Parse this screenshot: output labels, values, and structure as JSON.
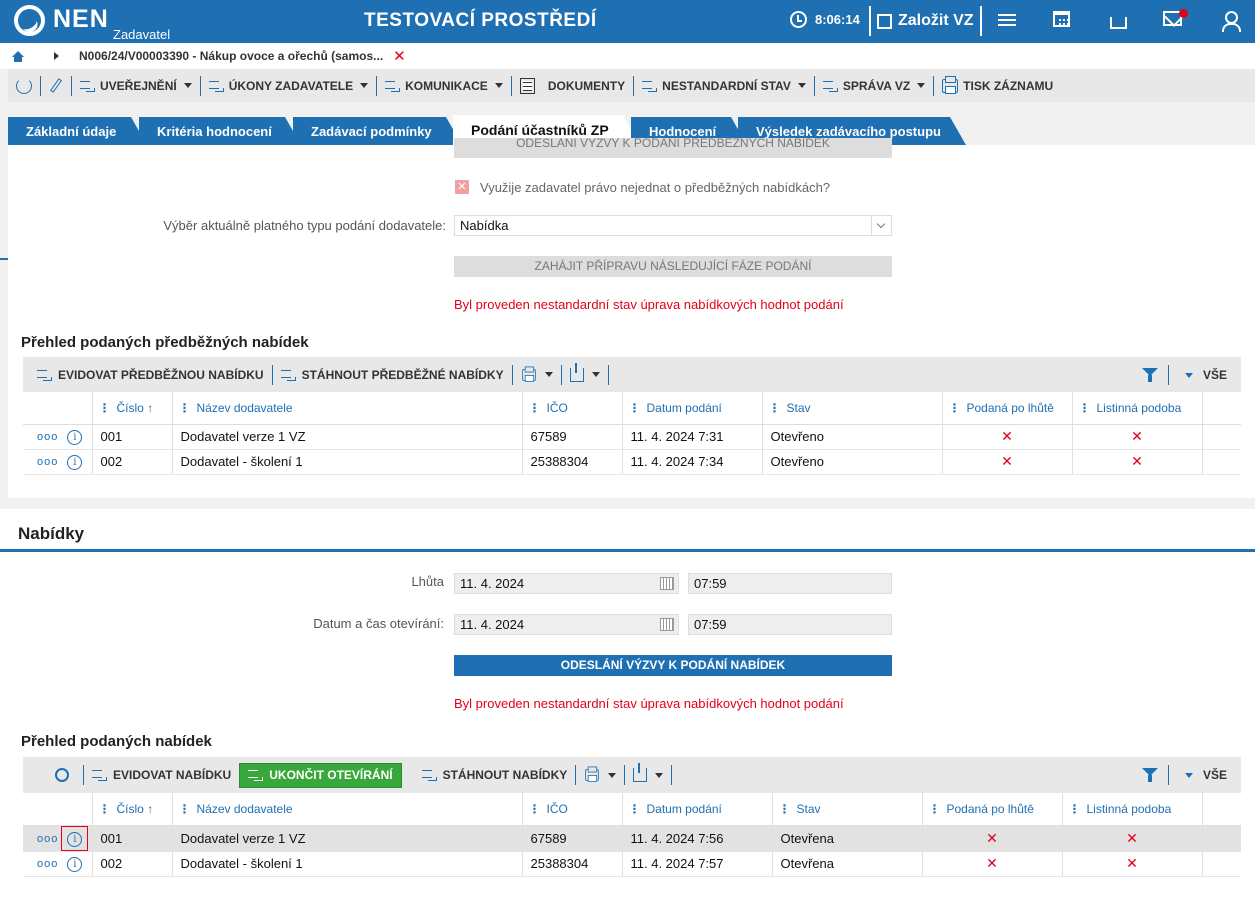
{
  "header": {
    "logo_text": "NEN",
    "logo_sub": "Zadavatel",
    "env_title": "TESTOVACÍ PROSTŘEDÍ",
    "time": "8:06:14",
    "create_vz": "Založit VZ"
  },
  "breadcrumb": {
    "text": "N006/24/V00003390 - Nákup ovoce a ořechů (samos...",
    "close": "✕"
  },
  "toolbar": {
    "items": [
      "UVEŘEJNĚNÍ",
      "ÚKONY ZADAVATELE",
      "KOMUNIKACE",
      "DOKUMENTY",
      "NESTANDARDNÍ STAV",
      "SPRÁVA VZ",
      "TISK ZÁZNAMU"
    ]
  },
  "tabs": [
    "Základní údaje",
    "Kritéria hodnocení",
    "Zadávací podmínky",
    "Podání účastníků ZP",
    "Hodnocení",
    "Výsledek zadávacího postupu"
  ],
  "predbezne": {
    "cut_button": "ODESLÁNÍ VÝZVY K PODÁNÍ PŘEDBĚŽNÝCH NABÍDEK",
    "checkbox_label": "Využije zadavatel právo nejednat o předběžných nabídkách?",
    "type_label": "Výběr aktuálně platného typu podání dodavatele:",
    "type_value": "Nabídka",
    "next_phase_button": "ZAHÁJIT PŘÍPRAVU NÁSLEDUJÍCÍ FÁZE PODÁNÍ",
    "warning": "Byl proveden nestandardní stav úprava nabídkových hodnot podání",
    "overview_title": "Přehled podaných předběžných nabídek",
    "toolbar": {
      "evidovat": "EVIDOVAT PŘEDBĚŽNOU NABÍDKU",
      "stahnout": "STÁHNOUT PŘEDBĚŽNÉ NABÍDKY",
      "all": "VŠE"
    },
    "columns": [
      "Číslo",
      "Název dodavatele",
      "IČO",
      "Datum podání",
      "Stav",
      "Podaná po lhůtě",
      "Listinná podoba"
    ],
    "rows": [
      {
        "cislo": "001",
        "nazev": "Dodavatel verze 1 VZ",
        "ico": "67589",
        "datum": "11. 4. 2024 7:31",
        "stav": "Otevřeno",
        "po_lhute": "✕",
        "listinna": "✕"
      },
      {
        "cislo": "002",
        "nazev": "Dodavatel - školení 1",
        "ico": "25388304",
        "datum": "11. 4. 2024 7:34",
        "stav": "Otevřeno",
        "po_lhute": "✕",
        "listinna": "✕"
      }
    ]
  },
  "nabidky": {
    "title": "Nabídky",
    "lhuta_label": "Lhůta",
    "lhuta_date": "11. 4. 2024",
    "lhuta_time": "07:59",
    "otevirani_label": "Datum a čas otevírání:",
    "otevirani_date": "11. 4. 2024",
    "otevirani_time": "07:59",
    "send_button": "ODESLÁNÍ VÝZVY K PODÁNÍ NABÍDEK",
    "warning": "Byl proveden nestandardní stav úprava nabídkových hodnot podání",
    "overview_title": "Přehled podaných nabídek",
    "toolbar": {
      "evidovat": "EVIDOVAT NABÍDKU",
      "ukoncit": "UKONČIT OTEVÍRÁNÍ",
      "stahnout": "STÁHNOUT NABÍDKY",
      "all": "VŠE"
    },
    "columns": [
      "Číslo",
      "Název dodavatele",
      "IČO",
      "Datum podání",
      "Stav",
      "Podaná po lhůtě",
      "Listinná podoba"
    ],
    "rows": [
      {
        "cislo": "001",
        "nazev": "Dodavatel verze 1 VZ",
        "ico": "67589",
        "datum": "11. 4. 2024 7:56",
        "stav": "Otevřena",
        "po_lhute": "✕",
        "listinna": "✕"
      },
      {
        "cislo": "002",
        "nazev": "Dodavatel - školení 1",
        "ico": "25388304",
        "datum": "11. 4. 2024 7:57",
        "stav": "Otevřena",
        "po_lhute": "✕",
        "listinna": "✕"
      }
    ]
  },
  "icons": {
    "dots": "ooo",
    "info": "i",
    "sort_asc": "↑",
    "drag_handle": "⋮",
    "checkbox_x": "✕"
  },
  "colors": {
    "brand_blue": "#1f6fb3",
    "warning_red": "#e3001b",
    "action_green": "#38a83d"
  }
}
